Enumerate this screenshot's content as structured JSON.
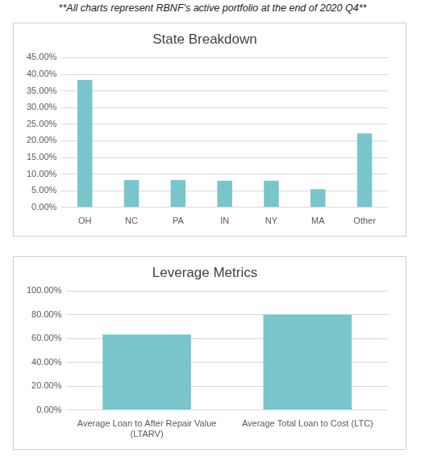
{
  "caption": "**All charts represent RBNF's active portfolio at the end of 2020 Q4**",
  "chart_data": [
    {
      "type": "bar",
      "title": "State Breakdown",
      "categories": [
        "OH",
        "NC",
        "PA",
        "IN",
        "NY",
        "MA",
        "Other"
      ],
      "values": [
        38.3,
        8.2,
        8.2,
        8.0,
        8.0,
        5.5,
        22.2
      ],
      "color": "#78c6cb",
      "ylim": [
        0,
        45
      ],
      "yticks": [
        {
          "value": 0,
          "label": "0.00%"
        },
        {
          "value": 5,
          "label": "5.00%"
        },
        {
          "value": 10,
          "label": "10.00%"
        },
        {
          "value": 15,
          "label": "15.00%"
        },
        {
          "value": 20,
          "label": "20.00%"
        },
        {
          "value": 25,
          "label": "25.00%"
        },
        {
          "value": 30,
          "label": "30.00%"
        },
        {
          "value": 35,
          "label": "35.00%"
        },
        {
          "value": 40,
          "label": "40.00%"
        },
        {
          "value": 45,
          "label": "45.00%"
        }
      ],
      "grid": true
    },
    {
      "type": "bar",
      "title": "Leverage Metrics",
      "categories": [
        "Average Loan to After Repair Value (LTARV)",
        "Average Total Loan to Cost (LTC)"
      ],
      "values": [
        63.5,
        80.0
      ],
      "color": "#78c6cb",
      "ylim": [
        0,
        100
      ],
      "yticks": [
        {
          "value": 0,
          "label": "0.00%"
        },
        {
          "value": 20,
          "label": "20.00%"
        },
        {
          "value": 40,
          "label": "40.00%"
        },
        {
          "value": 60,
          "label": "60.00%"
        },
        {
          "value": 80,
          "label": "80.00%"
        },
        {
          "value": 100,
          "label": "100.00%"
        }
      ],
      "grid": true
    }
  ]
}
